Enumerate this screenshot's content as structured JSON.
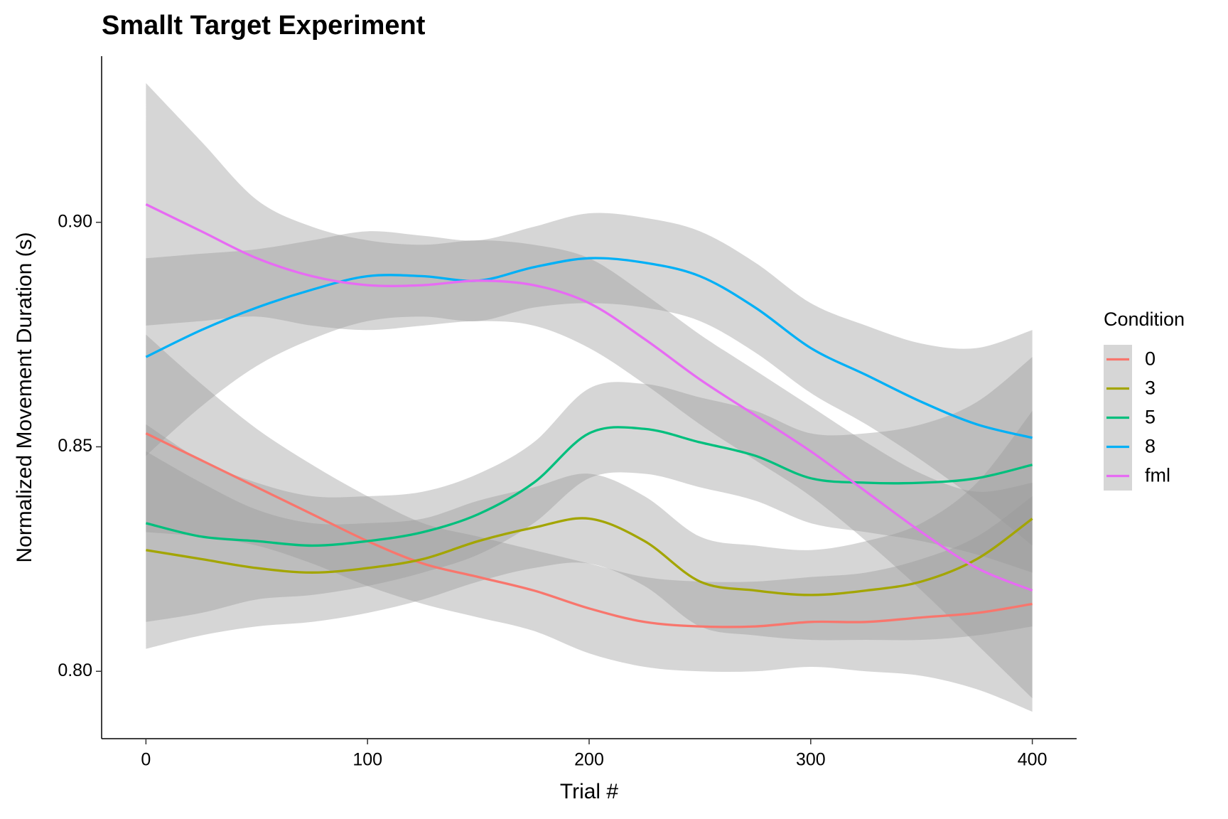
{
  "chart_data": {
    "type": "smooth",
    "title": "Smallt Target Experiment",
    "x_label": "Trial #",
    "y_label": "Normalized Movement Duration (s)",
    "legend_title": "Condition",
    "legend_position": "right",
    "x": [
      0,
      25,
      50,
      75,
      100,
      125,
      150,
      175,
      200,
      225,
      250,
      275,
      300,
      325,
      350,
      375,
      400
    ],
    "xlim": [
      -20,
      420
    ],
    "xticks": [
      0,
      100,
      200,
      300,
      400
    ],
    "ylim": [
      0.785,
      0.937
    ],
    "yticks": [
      {
        "value": 0.8,
        "label": "0.80"
      },
      0.85,
      {
        "value": 0.9,
        "label": "0.90"
      }
    ],
    "band_color": "#999999",
    "series": [
      {
        "name": "0",
        "color": "#F8766D",
        "values": [
          0.853,
          0.847,
          0.841,
          0.835,
          0.829,
          0.824,
          0.821,
          0.818,
          0.814,
          0.811,
          0.81,
          0.81,
          0.811,
          0.811,
          0.812,
          0.813,
          0.815
        ],
        "lower": [
          0.831,
          0.83,
          0.828,
          0.824,
          0.819,
          0.815,
          0.812,
          0.809,
          0.804,
          0.801,
          0.8,
          0.8,
          0.801,
          0.8,
          0.799,
          0.796,
          0.791
        ],
        "upper": [
          0.875,
          0.864,
          0.854,
          0.846,
          0.839,
          0.833,
          0.83,
          0.827,
          0.824,
          0.821,
          0.82,
          0.82,
          0.821,
          0.822,
          0.825,
          0.83,
          0.839
        ]
      },
      {
        "name": "3",
        "color": "#A3A500",
        "values": [
          0.827,
          0.825,
          0.823,
          0.822,
          0.823,
          0.825,
          0.829,
          0.832,
          0.834,
          0.829,
          0.82,
          0.818,
          0.817,
          0.818,
          0.82,
          0.825,
          0.834
        ],
        "lower": [
          0.805,
          0.808,
          0.81,
          0.811,
          0.813,
          0.816,
          0.82,
          0.823,
          0.824,
          0.819,
          0.81,
          0.808,
          0.807,
          0.807,
          0.807,
          0.808,
          0.81
        ],
        "upper": [
          0.849,
          0.842,
          0.836,
          0.833,
          0.833,
          0.834,
          0.838,
          0.841,
          0.844,
          0.839,
          0.83,
          0.828,
          0.827,
          0.829,
          0.833,
          0.842,
          0.858
        ]
      },
      {
        "name": "5",
        "color": "#00BF7D",
        "values": [
          0.833,
          0.83,
          0.829,
          0.828,
          0.829,
          0.831,
          0.835,
          0.842,
          0.853,
          0.854,
          0.851,
          0.848,
          0.843,
          0.842,
          0.842,
          0.843,
          0.846
        ],
        "lower": [
          0.811,
          0.813,
          0.816,
          0.817,
          0.819,
          0.822,
          0.826,
          0.833,
          0.843,
          0.844,
          0.841,
          0.838,
          0.833,
          0.831,
          0.829,
          0.826,
          0.822
        ],
        "upper": [
          0.855,
          0.847,
          0.842,
          0.839,
          0.839,
          0.84,
          0.844,
          0.851,
          0.863,
          0.864,
          0.861,
          0.858,
          0.853,
          0.853,
          0.855,
          0.86,
          0.87
        ]
      },
      {
        "name": "8",
        "color": "#00B0F6",
        "values": [
          0.87,
          0.876,
          0.881,
          0.885,
          0.888,
          0.888,
          0.887,
          0.89,
          0.892,
          0.891,
          0.888,
          0.881,
          0.872,
          0.866,
          0.86,
          0.855,
          0.852
        ],
        "lower": [
          0.848,
          0.859,
          0.868,
          0.874,
          0.878,
          0.879,
          0.878,
          0.881,
          0.882,
          0.881,
          0.878,
          0.871,
          0.862,
          0.855,
          0.847,
          0.838,
          0.828
        ],
        "upper": [
          0.892,
          0.893,
          0.894,
          0.896,
          0.898,
          0.897,
          0.896,
          0.899,
          0.902,
          0.901,
          0.898,
          0.891,
          0.882,
          0.877,
          0.873,
          0.872,
          0.876
        ]
      },
      {
        "name": "fml",
        "color": "#E76BF3",
        "values": [
          0.904,
          0.898,
          0.892,
          0.888,
          0.886,
          0.886,
          0.887,
          0.886,
          0.882,
          0.874,
          0.865,
          0.857,
          0.849,
          0.84,
          0.831,
          0.823,
          0.818
        ],
        "lower": [
          0.877,
          0.878,
          0.879,
          0.877,
          0.876,
          0.877,
          0.878,
          0.877,
          0.872,
          0.864,
          0.855,
          0.847,
          0.839,
          0.829,
          0.818,
          0.806,
          0.794
        ],
        "upper": [
          0.931,
          0.918,
          0.905,
          0.899,
          0.896,
          0.895,
          0.896,
          0.895,
          0.892,
          0.884,
          0.875,
          0.867,
          0.859,
          0.851,
          0.844,
          0.84,
          0.842
        ]
      }
    ]
  }
}
